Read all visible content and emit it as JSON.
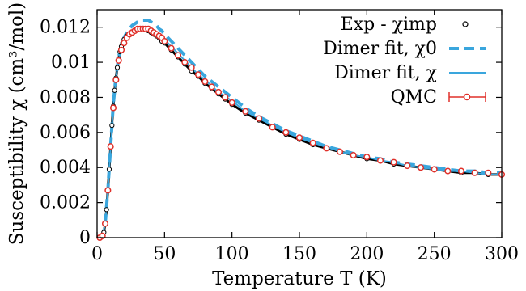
{
  "chart_data": {
    "type": "line",
    "xlabel": "Temperature T (K)",
    "ylabel": "Susceptibility χ (cm³/mol)",
    "xlim": [
      0,
      300
    ],
    "ylim": [
      0,
      0.013
    ],
    "x_ticks": [
      0,
      50,
      100,
      150,
      200,
      250,
      300
    ],
    "x_tick_labels": [
      "0",
      "50",
      "100",
      "150",
      "200",
      "250",
      "300"
    ],
    "y_ticks": [
      0,
      0.002,
      0.004,
      0.006,
      0.008,
      0.01,
      0.012
    ],
    "y_tick_labels": [
      "0",
      "0.002",
      "0.004",
      "0.006",
      "0.008",
      "0.01",
      "0.012"
    ],
    "grid": false,
    "legend_position": "top-right",
    "series": [
      {
        "name": "Exp - χimp",
        "style": "points",
        "color": "#000000",
        "x": [
          2,
          3,
          4,
          5,
          6,
          7,
          8,
          9,
          10,
          11,
          12,
          13,
          14,
          15,
          16,
          17,
          18,
          19,
          20,
          22,
          24,
          26,
          28,
          30,
          32,
          34,
          36,
          38,
          40,
          42,
          44,
          46,
          48,
          50,
          55,
          60,
          65,
          70,
          75,
          80,
          85,
          90,
          95,
          100,
          110,
          120,
          130,
          140,
          150,
          160,
          170,
          180,
          190,
          200,
          210,
          220,
          230,
          240,
          250,
          260,
          270,
          280,
          290,
          300
        ],
        "y": [
          0.0,
          2e-05,
          0.0001,
          0.0003,
          0.0008,
          0.0016,
          0.0027,
          0.0039,
          0.0052,
          0.0064,
          0.0075,
          0.0084,
          0.0091,
          0.0097,
          0.0102,
          0.0106,
          0.0109,
          0.0111,
          0.0113,
          0.0115,
          0.0116,
          0.0117,
          0.0118,
          0.0119,
          0.0119,
          0.0119,
          0.0119,
          0.0118,
          0.0117,
          0.0116,
          0.0115,
          0.0114,
          0.0112,
          0.0111,
          0.0107,
          0.0103,
          0.0099,
          0.0095,
          0.0092,
          0.0088,
          0.0085,
          0.0082,
          0.0079,
          0.0076,
          0.0071,
          0.0067,
          0.0063,
          0.0059,
          0.0056,
          0.0053,
          0.0051,
          0.0049,
          0.0047,
          0.0045,
          0.0044,
          0.0042,
          0.0041,
          0.004,
          0.0039,
          0.0038,
          0.0037,
          0.0037,
          0.0036,
          0.0036
        ]
      },
      {
        "name": "Dimer fit, χ0",
        "style": "dashed",
        "color": "#3aa6dd",
        "x": [
          2,
          4,
          6,
          8,
          10,
          12,
          14,
          16,
          18,
          20,
          22,
          24,
          26,
          28,
          30,
          32,
          34,
          36,
          38,
          40,
          42,
          44,
          46,
          48,
          50,
          55,
          60,
          65,
          70,
          75,
          80,
          90,
          100,
          110,
          120,
          130,
          140,
          150,
          160,
          170,
          180,
          190,
          200,
          210,
          220,
          230,
          240,
          250,
          260,
          270,
          280,
          290,
          300
        ],
        "y": [
          0.0,
          0.0001,
          0.0008,
          0.0027,
          0.0052,
          0.0076,
          0.0092,
          0.0103,
          0.011,
          0.0114,
          0.0117,
          0.0119,
          0.0121,
          0.0122,
          0.0123,
          0.0124,
          0.0124,
          0.0124,
          0.0124,
          0.0123,
          0.0122,
          0.0121,
          0.0119,
          0.0118,
          0.0116,
          0.0112,
          0.0108,
          0.0104,
          0.01,
          0.0096,
          0.0092,
          0.0086,
          0.008,
          0.0074,
          0.0069,
          0.0065,
          0.0061,
          0.0058,
          0.0055,
          0.0052,
          0.005,
          0.0048,
          0.0046,
          0.0045,
          0.0043,
          0.0042,
          0.0041,
          0.004,
          0.0039,
          0.0038,
          0.0038,
          0.0037,
          0.0037
        ]
      },
      {
        "name": "Dimer fit, χ",
        "style": "solid",
        "color": "#3aa6dd",
        "x": [
          2,
          4,
          6,
          8,
          10,
          12,
          14,
          16,
          18,
          20,
          22,
          24,
          26,
          28,
          30,
          32,
          34,
          36,
          38,
          40,
          42,
          44,
          46,
          48,
          50,
          55,
          60,
          65,
          70,
          75,
          80,
          90,
          100,
          110,
          120,
          130,
          140,
          150,
          160,
          170,
          180,
          190,
          200,
          210,
          220,
          230,
          240,
          250,
          260,
          270,
          280,
          290,
          300
        ],
        "y": [
          0.0,
          0.0001,
          0.0008,
          0.0027,
          0.0052,
          0.0075,
          0.0091,
          0.0102,
          0.0109,
          0.0113,
          0.0115,
          0.0117,
          0.0118,
          0.0119,
          0.0119,
          0.012,
          0.012,
          0.012,
          0.0119,
          0.0119,
          0.0118,
          0.0117,
          0.0116,
          0.0114,
          0.0113,
          0.0109,
          0.0105,
          0.0101,
          0.0097,
          0.0093,
          0.009,
          0.0083,
          0.0078,
          0.0072,
          0.0068,
          0.0064,
          0.006,
          0.0057,
          0.0054,
          0.0052,
          0.0049,
          0.0047,
          0.0046,
          0.0044,
          0.0043,
          0.0041,
          0.004,
          0.0039,
          0.0038,
          0.0038,
          0.0037,
          0.0036,
          0.0036
        ]
      },
      {
        "name": "QMC",
        "style": "points-errorbars",
        "color": "#e0302a",
        "x": [
          2,
          4,
          6,
          8,
          10,
          12,
          14,
          16,
          18,
          20,
          22,
          24,
          26,
          28,
          30,
          32,
          34,
          36,
          38,
          40,
          42,
          44,
          46,
          48,
          50,
          55,
          60,
          65,
          70,
          75,
          80,
          85,
          90,
          95,
          100,
          110,
          120,
          130,
          140,
          150,
          160,
          170,
          180,
          190,
          200,
          210,
          220,
          230,
          240,
          250,
          260,
          270,
          280,
          290,
          300
        ],
        "y": [
          0.0,
          0.0001,
          0.0008,
          0.0027,
          0.0052,
          0.0074,
          0.009,
          0.0101,
          0.0107,
          0.0111,
          0.0114,
          0.0116,
          0.0117,
          0.0118,
          0.0119,
          0.0119,
          0.0119,
          0.0119,
          0.0119,
          0.0118,
          0.0117,
          0.0116,
          0.0115,
          0.0114,
          0.0112,
          0.0108,
          0.0104,
          0.01,
          0.0097,
          0.0093,
          0.0089,
          0.0086,
          0.0083,
          0.008,
          0.0077,
          0.0072,
          0.0068,
          0.0063,
          0.006,
          0.0057,
          0.0054,
          0.0051,
          0.0049,
          0.0047,
          0.0046,
          0.0044,
          0.0043,
          0.0041,
          0.004,
          0.0039,
          0.0038,
          0.0038,
          0.0037,
          0.0037,
          0.0036
        ]
      }
    ]
  }
}
